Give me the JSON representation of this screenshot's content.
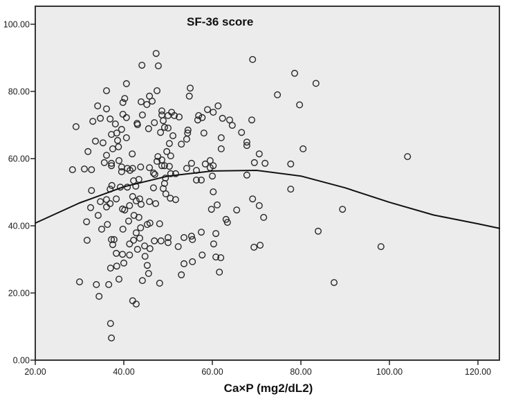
{
  "chart_data": {
    "type": "scatter",
    "title": "SF-36 score",
    "xlabel": "Ca×P (mg2/dL2)",
    "ylabel": "",
    "xlim": [
      20,
      125
    ],
    "ylim": [
      0,
      105
    ],
    "x_ticks": [
      20,
      40,
      60,
      80,
      100,
      120
    ],
    "x_tick_labels": [
      "20.00",
      "40.00",
      "60.00",
      "80.00",
      "100.00",
      "120.00"
    ],
    "y_ticks": [
      0,
      20,
      40,
      60,
      80,
      100
    ],
    "y_tick_labels": [
      "0.00",
      "20.00",
      "40.00",
      "60.00",
      "80.00",
      "100.00"
    ],
    "grid": false,
    "legend": null,
    "background": "#ececec",
    "marker": "open-circle",
    "fit_line": {
      "type": "quadratic",
      "points": [
        [
          20,
          40.8
        ],
        [
          30,
          46.8
        ],
        [
          40,
          51.6
        ],
        [
          50,
          54.8
        ],
        [
          60,
          56.3
        ],
        [
          70,
          56.5
        ],
        [
          80,
          54.8
        ],
        [
          90,
          51.3
        ],
        [
          100,
          47.0
        ],
        [
          110,
          43.2
        ],
        [
          120,
          40.6
        ],
        [
          125,
          39.2
        ]
      ]
    },
    "series": [
      {
        "name": "SF-36 score",
        "points": [
          [
            47.3,
            91.3
          ],
          [
            44.1,
            87.8
          ],
          [
            47.8,
            87.6
          ],
          [
            40.6,
            82.3
          ],
          [
            36.1,
            80.2
          ],
          [
            47.5,
            80.2
          ],
          [
            55.0,
            81.0
          ],
          [
            54.8,
            78.6
          ],
          [
            69.1,
            89.5
          ],
          [
            78.6,
            85.4
          ],
          [
            83.4,
            82.4
          ],
          [
            74.7,
            79.0
          ],
          [
            79.7,
            76.0
          ],
          [
            40.2,
            77.9
          ],
          [
            39.8,
            76.7
          ],
          [
            45.8,
            78.6
          ],
          [
            43.9,
            76.9
          ],
          [
            45.2,
            76.1
          ],
          [
            46.4,
            77.1
          ],
          [
            34.1,
            75.7
          ],
          [
            36.1,
            74.8
          ],
          [
            58.9,
            74.6
          ],
          [
            60.2,
            73.8
          ],
          [
            61.3,
            75.7
          ],
          [
            56.9,
            72.8
          ],
          [
            57.7,
            72.2
          ],
          [
            56.7,
            71.5
          ],
          [
            48.6,
            74.2
          ],
          [
            48.6,
            73.0
          ],
          [
            50.8,
            73.8
          ],
          [
            50.0,
            72.8
          ],
          [
            51.4,
            72.8
          ],
          [
            52.5,
            72.4
          ],
          [
            44.2,
            73.0
          ],
          [
            39.8,
            73.2
          ],
          [
            40.6,
            72.2
          ],
          [
            34.7,
            72.0
          ],
          [
            33.0,
            71.1
          ],
          [
            36.9,
            71.8
          ],
          [
            29.2,
            69.5
          ],
          [
            38.1,
            70.3
          ],
          [
            43.0,
            70.5
          ],
          [
            43.1,
            70.1
          ],
          [
            46.9,
            70.7
          ],
          [
            45.6,
            68.9
          ],
          [
            48.9,
            71.3
          ],
          [
            49.2,
            69.3
          ],
          [
            50.0,
            69.1
          ],
          [
            62.3,
            72.0
          ],
          [
            63.9,
            71.5
          ],
          [
            64.5,
            69.9
          ],
          [
            68.9,
            71.5
          ],
          [
            39.5,
            68.7
          ],
          [
            38.4,
            67.6
          ],
          [
            37.2,
            67.2
          ],
          [
            40.6,
            66.2
          ],
          [
            48.3,
            67.8
          ],
          [
            54.5,
            68.5
          ],
          [
            54.4,
            67.6
          ],
          [
            58.1,
            67.6
          ],
          [
            66.6,
            67.8
          ],
          [
            51.1,
            66.8
          ],
          [
            54.2,
            65.8
          ],
          [
            53.0,
            64.3
          ],
          [
            62.0,
            66.2
          ],
          [
            67.8,
            64.9
          ],
          [
            67.8,
            63.9
          ],
          [
            62.0,
            62.9
          ],
          [
            38.6,
            65.4
          ],
          [
            38.8,
            63.5
          ],
          [
            33.6,
            65.2
          ],
          [
            35.3,
            64.7
          ],
          [
            50.3,
            64.5
          ],
          [
            37.5,
            62.9
          ],
          [
            31.9,
            62.1
          ],
          [
            41.9,
            61.4
          ],
          [
            36.1,
            61.0
          ],
          [
            49.7,
            62.1
          ],
          [
            50.6,
            60.8
          ],
          [
            47.7,
            60.6
          ],
          [
            47.5,
            59.2
          ],
          [
            48.6,
            59.6
          ],
          [
            38.9,
            59.4
          ],
          [
            35.6,
            58.8
          ],
          [
            37.2,
            58.6
          ],
          [
            37.2,
            57.9
          ],
          [
            28.4,
            56.7
          ],
          [
            31.1,
            56.9
          ],
          [
            32.7,
            56.7
          ],
          [
            39.5,
            57.5
          ],
          [
            40.8,
            57.1
          ],
          [
            41.4,
            56.5
          ],
          [
            42.0,
            57.1
          ],
          [
            43.8,
            57.5
          ],
          [
            45.8,
            57.3
          ],
          [
            46.7,
            55.7
          ],
          [
            47.0,
            55.3
          ],
          [
            48.6,
            57.9
          ],
          [
            49.2,
            57.9
          ],
          [
            50.3,
            57.7
          ],
          [
            50.6,
            55.5
          ],
          [
            51.7,
            55.5
          ],
          [
            55.3,
            58.6
          ],
          [
            54.2,
            57.1
          ],
          [
            56.4,
            56.5
          ],
          [
            58.4,
            58.4
          ],
          [
            59.5,
            59.4
          ],
          [
            59.5,
            57.3
          ],
          [
            60.2,
            57.9
          ],
          [
            60.0,
            54.8
          ],
          [
            56.4,
            53.6
          ],
          [
            57.5,
            53.6
          ],
          [
            67.8,
            55.1
          ],
          [
            69.5,
            58.8
          ],
          [
            70.6,
            61.4
          ],
          [
            71.9,
            58.6
          ],
          [
            77.7,
            58.4
          ],
          [
            80.5,
            62.9
          ],
          [
            104.1,
            60.6
          ],
          [
            39.5,
            56.1
          ],
          [
            42.2,
            53.4
          ],
          [
            43.4,
            53.8
          ],
          [
            42.7,
            51.8
          ],
          [
            39.2,
            51.5
          ],
          [
            40.8,
            51.5
          ],
          [
            37.3,
            52.0
          ],
          [
            36.9,
            50.9
          ],
          [
            32.7,
            50.5
          ],
          [
            46.7,
            51.3
          ],
          [
            48.9,
            51.1
          ],
          [
            49.4,
            54.2
          ],
          [
            49.2,
            52.6
          ],
          [
            60.2,
            50.1
          ],
          [
            77.7,
            50.9
          ],
          [
            69.1,
            48.0
          ],
          [
            70.6,
            46.0
          ],
          [
            71.6,
            42.5
          ],
          [
            89.4,
            44.9
          ],
          [
            83.9,
            38.4
          ],
          [
            69.4,
            33.6
          ],
          [
            70.8,
            34.2
          ],
          [
            98.1,
            33.8
          ],
          [
            87.5,
            23.1
          ],
          [
            34.7,
            47.2
          ],
          [
            36.1,
            47.8
          ],
          [
            36.9,
            46.6
          ],
          [
            36.1,
            45.6
          ],
          [
            38.3,
            48.0
          ],
          [
            32.5,
            45.4
          ],
          [
            39.7,
            45.0
          ],
          [
            40.2,
            44.7
          ],
          [
            41.3,
            46.0
          ],
          [
            42.0,
            48.7
          ],
          [
            42.8,
            47.4
          ],
          [
            43.6,
            48.0
          ],
          [
            43.9,
            46.4
          ],
          [
            45.8,
            47.2
          ],
          [
            47.2,
            46.6
          ],
          [
            34.2,
            43.1
          ],
          [
            31.6,
            41.2
          ],
          [
            36.3,
            40.4
          ],
          [
            35.0,
            39.0
          ],
          [
            42.3,
            43.1
          ],
          [
            43.4,
            42.5
          ],
          [
            41.1,
            41.4
          ],
          [
            39.8,
            39.0
          ],
          [
            45.3,
            40.4
          ],
          [
            45.9,
            40.8
          ],
          [
            48.1,
            40.6
          ],
          [
            43.8,
            39.4
          ],
          [
            42.8,
            37.9
          ],
          [
            43.6,
            36.3
          ],
          [
            42.2,
            35.7
          ],
          [
            31.7,
            35.7
          ],
          [
            37.2,
            35.9
          ],
          [
            37.8,
            35.9
          ],
          [
            37.5,
            34.4
          ],
          [
            41.3,
            34.6
          ],
          [
            43.1,
            33.0
          ],
          [
            44.7,
            34.0
          ],
          [
            45.9,
            33.2
          ],
          [
            44.8,
            30.9
          ],
          [
            46.9,
            35.5
          ],
          [
            48.4,
            35.5
          ],
          [
            50.0,
            36.5
          ],
          [
            50.0,
            35.0
          ],
          [
            38.3,
            31.8
          ],
          [
            39.7,
            31.5
          ],
          [
            41.3,
            31.3
          ],
          [
            40.0,
            28.9
          ],
          [
            38.4,
            28.0
          ],
          [
            37.0,
            27.4
          ],
          [
            45.3,
            28.2
          ],
          [
            45.6,
            25.8
          ],
          [
            38.9,
            24.1
          ],
          [
            30.0,
            23.3
          ],
          [
            33.8,
            22.5
          ],
          [
            36.6,
            22.5
          ],
          [
            44.2,
            23.7
          ],
          [
            48.1,
            22.9
          ],
          [
            34.4,
            19.0
          ],
          [
            42.0,
            17.7
          ],
          [
            42.8,
            16.7
          ],
          [
            37.0,
            10.9
          ],
          [
            37.2,
            6.6
          ],
          [
            52.3,
            33.8
          ],
          [
            53.6,
            36.5
          ],
          [
            55.3,
            36.9
          ],
          [
            55.5,
            35.9
          ],
          [
            57.5,
            38.1
          ],
          [
            60.8,
            37.7
          ],
          [
            60.3,
            34.6
          ],
          [
            57.7,
            31.3
          ],
          [
            53.6,
            28.7
          ],
          [
            55.5,
            29.3
          ],
          [
            53.0,
            25.4
          ],
          [
            60.8,
            30.7
          ],
          [
            61.9,
            30.5
          ],
          [
            61.6,
            26.2
          ],
          [
            61.1,
            46.2
          ],
          [
            59.8,
            44.9
          ],
          [
            65.5,
            44.7
          ],
          [
            63.1,
            41.9
          ],
          [
            63.4,
            41.0
          ],
          [
            49.5,
            49.5
          ],
          [
            50.5,
            48.2
          ],
          [
            51.7,
            47.8
          ]
        ]
      }
    ]
  }
}
